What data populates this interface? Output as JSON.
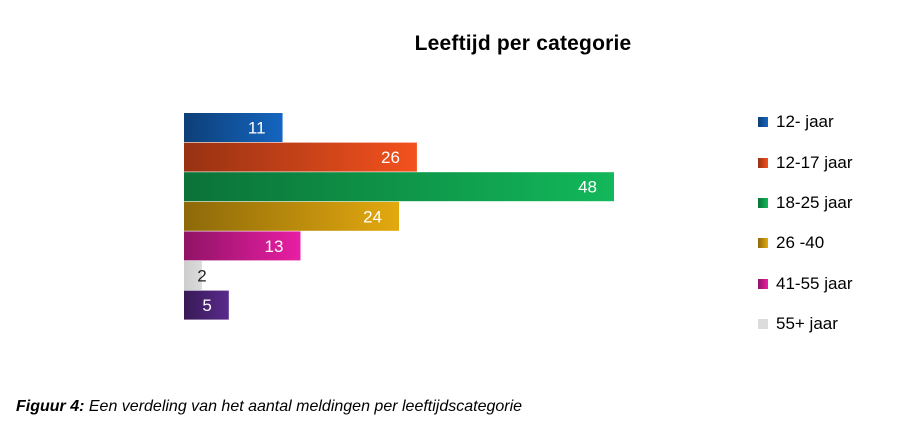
{
  "chart_data": {
    "type": "bar",
    "orientation": "horizontal",
    "title": "Leeftijd per categorie",
    "xlabel": "",
    "ylabel": "",
    "categories": [
      "12- jaar",
      "12-17 jaar",
      "18-25 jaar",
      "26 -40",
      "41-55 jaar",
      "55+ jaar",
      ""
    ],
    "values": [
      11,
      26,
      48,
      24,
      13,
      2,
      5
    ],
    "colors": [
      "#1565c0",
      "#f4511e",
      "#12b85a",
      "#e3a90f",
      "#e91ea4",
      "#dcdcdc",
      "#5a2a8c"
    ],
    "xlim": [
      0,
      48
    ],
    "grid": false,
    "legend_position": "right",
    "data_labels": true,
    "legend": [
      {
        "label": "12- jaar",
        "color": "#1565c0"
      },
      {
        "label": "12-17 jaar",
        "color": "#f4511e"
      },
      {
        "label": "18-25 jaar",
        "color": "#12b85a"
      },
      {
        "label": "26 -40",
        "color": "#e3a90f"
      },
      {
        "label": "41-55 jaar",
        "color": "#e91ea4"
      },
      {
        "label": "55+ jaar",
        "color": "#dcdcdc"
      }
    ]
  },
  "caption": {
    "prefix": "Figuur 4:",
    "text": " Een verdeling van het aantal meldingen per leeftijdscategorie"
  }
}
